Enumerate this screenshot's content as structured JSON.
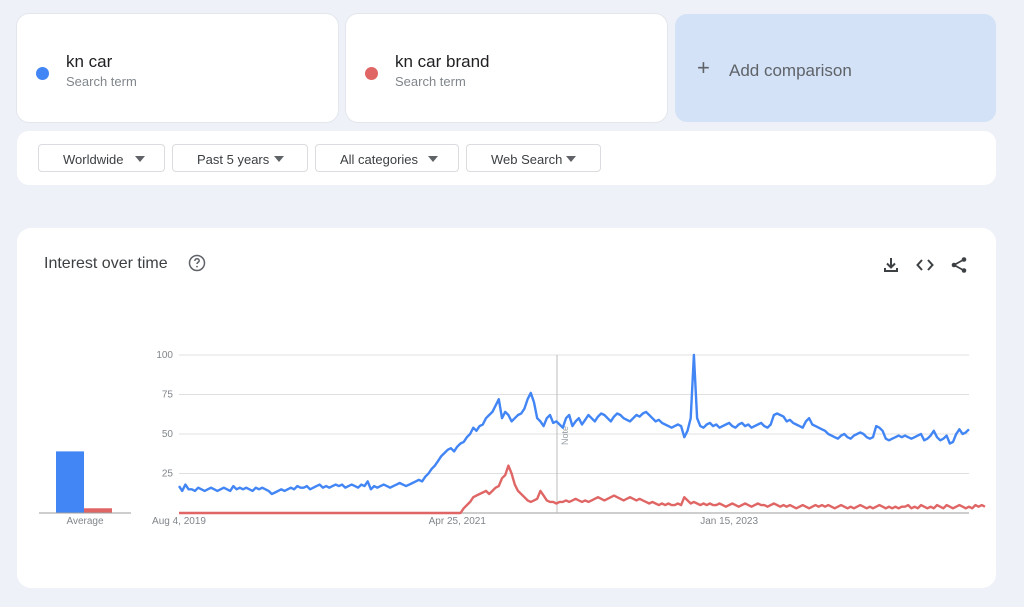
{
  "terms": [
    {
      "name": "kn car",
      "subtitle": "Search term",
      "color": "#4285f4"
    },
    {
      "name": "kn car brand",
      "subtitle": "Search term",
      "color": "#e06666"
    }
  ],
  "add_comparison": {
    "label": "Add comparison",
    "icon": "plus-icon"
  },
  "filters": [
    {
      "label": "Worldwide"
    },
    {
      "label": "Past 5 years"
    },
    {
      "label": "All categories"
    },
    {
      "label": "Web Search"
    }
  ],
  "panel": {
    "title": "Interest over time",
    "icons": [
      "help-icon",
      "download-icon",
      "embed-icon",
      "share-icon"
    ]
  },
  "chart_data": {
    "type": "line",
    "x_ticks": [
      "Aug 4, 2019",
      "Apr 25, 2021",
      "Jan 15, 2023"
    ],
    "ylim": [
      0,
      100
    ],
    "y_ticks": [
      "25",
      "50",
      "75",
      "100"
    ],
    "average_label": "Average",
    "averages": [
      39,
      3
    ],
    "note_label": "Note",
    "grid": true,
    "series": [
      {
        "name": "kn car",
        "color": "#4285f4",
        "values": [
          17,
          14,
          18,
          15,
          15,
          14,
          16,
          15,
          14,
          15,
          16,
          15,
          14,
          15,
          16,
          15,
          14,
          17,
          15,
          16,
          15,
          16,
          15,
          14,
          16,
          15,
          16,
          15,
          14,
          12,
          13,
          14,
          15,
          14,
          15,
          16,
          15,
          17,
          16,
          16,
          17,
          15,
          16,
          17,
          18,
          16,
          17,
          16,
          17,
          18,
          17,
          18,
          16,
          17,
          18,
          17,
          16,
          18,
          17,
          20,
          15,
          17,
          16,
          17,
          18,
          17,
          16,
          17,
          18,
          19,
          18,
          17,
          18,
          19,
          20,
          21,
          20,
          23,
          25,
          28,
          30,
          33,
          36,
          38,
          40,
          41,
          39,
          42,
          44,
          45,
          48,
          50,
          54,
          52,
          55,
          56,
          60,
          62,
          64,
          68,
          72,
          60,
          64,
          62,
          58,
          60,
          62,
          63,
          66,
          72,
          76,
          70,
          60,
          58,
          55,
          60,
          62,
          57,
          58,
          56,
          54,
          60,
          62,
          55,
          58,
          60,
          56,
          59,
          62,
          60,
          58,
          61,
          63,
          62,
          60,
          58,
          61,
          63,
          62,
          60,
          59,
          58,
          60,
          62,
          61,
          63,
          64,
          62,
          60,
          58,
          59,
          57,
          56,
          55,
          54,
          55,
          56,
          55,
          48,
          52,
          60,
          100,
          60,
          55,
          54,
          56,
          57,
          55,
          56,
          54,
          55,
          56,
          57,
          55,
          54,
          56,
          57,
          55,
          56,
          54,
          55,
          56,
          57,
          55,
          54,
          56,
          62,
          63,
          62,
          61,
          58,
          59,
          57,
          56,
          55,
          54,
          58,
          60,
          56,
          55,
          54,
          53,
          52,
          50,
          49,
          48,
          47,
          49,
          50,
          48,
          47,
          49,
          50,
          51,
          50,
          48,
          47,
          48,
          55,
          54,
          52,
          47,
          46,
          47,
          48,
          49,
          48,
          49,
          48,
          47,
          48,
          49,
          50,
          46,
          47,
          49,
          52,
          48,
          46,
          47,
          49,
          44,
          45,
          50,
          53,
          50,
          51,
          53
        ],
        "values_note": "weekly"
      },
      {
        "name": "kn car brand",
        "color": "#e06666",
        "values": [
          0,
          0,
          0,
          0,
          0,
          0,
          0,
          0,
          0,
          0,
          0,
          0,
          0,
          0,
          0,
          0,
          0,
          0,
          0,
          0,
          0,
          0,
          0,
          0,
          0,
          0,
          0,
          0,
          0,
          0,
          0,
          0,
          0,
          0,
          0,
          0,
          0,
          0,
          0,
          0,
          0,
          0,
          0,
          0,
          0,
          0,
          0,
          0,
          0,
          0,
          0,
          0,
          0,
          0,
          0,
          0,
          0,
          0,
          0,
          0,
          0,
          0,
          0,
          0,
          0,
          0,
          0,
          0,
          0,
          0,
          0,
          0,
          0,
          0,
          0,
          0,
          0,
          0,
          0,
          0,
          0,
          0,
          0,
          0,
          0,
          0,
          0,
          0,
          0,
          3,
          5,
          7,
          10,
          11,
          12,
          13,
          14,
          12,
          14,
          16,
          17,
          22,
          24,
          30,
          25,
          18,
          14,
          12,
          10,
          8,
          7,
          8,
          9,
          14,
          11,
          8,
          7,
          7,
          6,
          7,
          7,
          8,
          7,
          8,
          9,
          8,
          7,
          8,
          7,
          8,
          9,
          10,
          9,
          8,
          9,
          10,
          11,
          10,
          9,
          8,
          9,
          10,
          9,
          8,
          9,
          8,
          7,
          6,
          7,
          6,
          5,
          6,
          5,
          6,
          5,
          5,
          6,
          5,
          10,
          8,
          6,
          7,
          6,
          5,
          6,
          5,
          6,
          5,
          5,
          6,
          5,
          4,
          5,
          6,
          5,
          4,
          5,
          6,
          5,
          4,
          5,
          6,
          5,
          5,
          4,
          5,
          6,
          5,
          4,
          5,
          4,
          5,
          4,
          3,
          4,
          5,
          4,
          3,
          4,
          5,
          4,
          5,
          4,
          5,
          4,
          3,
          4,
          5,
          4,
          3,
          4,
          3,
          4,
          5,
          4,
          3,
          4,
          3,
          4,
          5,
          4,
          3,
          4,
          3,
          4,
          3,
          4,
          4,
          5,
          3,
          4,
          3,
          5,
          4,
          3,
          4,
          3,
          5,
          4,
          3,
          5,
          4,
          3,
          4,
          5,
          4,
          3,
          4,
          3,
          5,
          4,
          5,
          4
        ]
      }
    ]
  }
}
